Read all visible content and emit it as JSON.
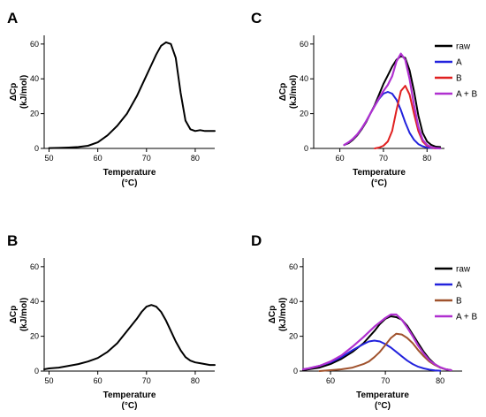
{
  "chart_data": [
    {
      "panel": "A",
      "type": "line",
      "xlabel": [
        "Temperature",
        "(°C)"
      ],
      "ylabel": [
        "ΔCp",
        "(kJ/mol)"
      ],
      "xlim": [
        49,
        84
      ],
      "ylim": [
        0,
        65
      ],
      "xticks": [
        50,
        60,
        70,
        80
      ],
      "yticks": [
        0,
        20,
        40,
        60
      ],
      "legend": null,
      "series": [
        {
          "color": "#000000",
          "x": [
            50,
            52,
            54,
            56,
            58,
            60,
            62,
            64,
            66,
            68,
            70,
            71,
            72,
            73,
            74,
            75,
            76,
            77,
            78,
            79,
            80,
            81,
            82,
            83,
            84
          ],
          "y": [
            0.2,
            0.3,
            0.5,
            0.8,
            1.5,
            3.5,
            7.5,
            13,
            20,
            30,
            42,
            48,
            54,
            59,
            61,
            60,
            52,
            32,
            16,
            11,
            10,
            10.5,
            10,
            10,
            10
          ]
        }
      ]
    },
    {
      "panel": "C",
      "type": "line",
      "xlabel": [
        "Temperature",
        "(°C)"
      ],
      "ylabel": [
        "ΔCp",
        "(kJ/mol)"
      ],
      "xlim": [
        54,
        84
      ],
      "ylim": [
        0,
        65
      ],
      "xticks": [
        60,
        70,
        80
      ],
      "yticks": [
        0,
        20,
        40,
        60
      ],
      "legend": {
        "position": "top-right",
        "entries": [
          {
            "label": "raw",
            "color": "#000000"
          },
          {
            "label": "A",
            "color": "#2222dd"
          },
          {
            "label": "B",
            "color": "#e02020"
          },
          {
            "label": "A + B",
            "color": "#b030d0"
          }
        ]
      },
      "series": [
        {
          "label": "raw",
          "color": "#000000",
          "x": [
            61,
            62,
            63,
            64,
            65,
            66,
            67,
            68,
            69,
            70,
            71,
            72,
            73,
            74,
            75,
            76,
            77,
            78,
            79,
            80,
            81,
            82,
            83
          ],
          "y": [
            2,
            3,
            5,
            7.5,
            11,
            15,
            20,
            25,
            31,
            37,
            42,
            47,
            51,
            53,
            52,
            45,
            33,
            19,
            9,
            4,
            2,
            1,
            0.8
          ]
        },
        {
          "label": "A",
          "color": "#2222dd",
          "x": [
            61,
            62,
            63,
            64,
            65,
            66,
            67,
            68,
            69,
            70,
            71,
            72,
            73,
            74,
            75,
            76,
            77,
            78,
            79,
            80,
            81,
            82,
            83
          ],
          "y": [
            2,
            3.5,
            5.5,
            8,
            11.5,
            15.5,
            20,
            24.5,
            28.5,
            31.5,
            32.5,
            31.5,
            28,
            22,
            15,
            9,
            5,
            2.5,
            1.2,
            0.5,
            0.2,
            0.1,
            0
          ]
        },
        {
          "label": "B",
          "color": "#e02020",
          "x": [
            68,
            69,
            70,
            71,
            72,
            73,
            74,
            75,
            76,
            77,
            78,
            79,
            80,
            81,
            82
          ],
          "y": [
            0,
            0.5,
            1.5,
            4,
            10,
            22,
            33,
            36,
            31,
            20,
            10,
            4,
            1.5,
            0.5,
            0
          ]
        },
        {
          "label": "A + B",
          "color": "#b030d0",
          "x": [
            61,
            62,
            63,
            64,
            65,
            66,
            67,
            68,
            69,
            70,
            71,
            72,
            73,
            74,
            75,
            76,
            77,
            78,
            79,
            80,
            81,
            82,
            83
          ],
          "y": [
            2,
            3.5,
            5.5,
            8,
            11.5,
            15.5,
            20,
            24.5,
            29,
            33,
            36.5,
            41.5,
            50,
            54.5,
            51,
            40,
            25,
            12.5,
            5,
            2,
            0.7,
            0.2,
            0
          ]
        }
      ]
    },
    {
      "panel": "B",
      "type": "line",
      "xlabel": [
        "Temperature",
        "(°C)"
      ],
      "ylabel": [
        "ΔCp",
        "(kJ/mol)"
      ],
      "xlim": [
        49,
        84
      ],
      "ylim": [
        0,
        65
      ],
      "xticks": [
        50,
        60,
        70,
        80
      ],
      "yticks": [
        0,
        20,
        40,
        60
      ],
      "legend": null,
      "series": [
        {
          "color": "#000000",
          "x": [
            49,
            50,
            52,
            54,
            56,
            58,
            60,
            62,
            64,
            66,
            68,
            69,
            70,
            71,
            72,
            73,
            74,
            75,
            76,
            77,
            78,
            79,
            80,
            81,
            82,
            83,
            84
          ],
          "y": [
            1,
            1.5,
            2,
            3,
            4,
            5.5,
            7.5,
            11,
            16,
            23,
            30,
            34,
            37,
            38,
            37,
            34,
            29,
            23,
            17,
            12,
            8,
            6,
            5,
            4.5,
            4,
            3.5,
            3.5
          ]
        }
      ]
    },
    {
      "panel": "D",
      "type": "line",
      "xlabel": [
        "Temperature",
        "(°C)"
      ],
      "ylabel": [
        "ΔCp",
        "(kJ/mol)"
      ],
      "xlim": [
        55,
        84
      ],
      "ylim": [
        0,
        65
      ],
      "xticks": [
        60,
        70,
        80
      ],
      "yticks": [
        0,
        20,
        40,
        60
      ],
      "legend": {
        "position": "top-right",
        "entries": [
          {
            "label": "raw",
            "color": "#000000"
          },
          {
            "label": "A",
            "color": "#2222dd"
          },
          {
            "label": "B",
            "color": "#a0522d"
          },
          {
            "label": "A + B",
            "color": "#b030d0"
          }
        ]
      },
      "series": [
        {
          "label": "raw",
          "color": "#000000",
          "x": [
            55,
            56,
            58,
            60,
            62,
            64,
            66,
            67,
            68,
            69,
            70,
            71,
            72,
            73,
            74,
            75,
            76,
            77,
            78,
            79,
            80,
            81,
            82
          ],
          "y": [
            0.5,
            1,
            2,
            4,
            7,
            11,
            16,
            19.5,
            23,
            27,
            30,
            31.5,
            31,
            29.5,
            26,
            21,
            16,
            11,
            7,
            4,
            2,
            1,
            0.5
          ]
        },
        {
          "label": "A",
          "color": "#2222dd",
          "x": [
            55,
            56,
            58,
            60,
            62,
            64,
            66,
            67,
            68,
            69,
            70,
            71,
            72,
            73,
            74,
            75,
            76,
            77,
            78,
            79,
            80
          ],
          "y": [
            1,
            1.5,
            3,
            5,
            8,
            12,
            15.5,
            17,
            17.5,
            17,
            15.5,
            13.5,
            11,
            8.5,
            6,
            4,
            2.5,
            1.5,
            0.8,
            0.4,
            0.2
          ]
        },
        {
          "label": "B",
          "color": "#a0522d",
          "x": [
            58,
            60,
            62,
            64,
            66,
            67,
            68,
            69,
            70,
            71,
            72,
            73,
            74,
            75,
            76,
            77,
            78,
            79,
            80,
            81,
            82
          ],
          "y": [
            0,
            0.5,
            1,
            2,
            4,
            5.5,
            8,
            11,
            15,
            19,
            21.5,
            21,
            19,
            16,
            12,
            8.5,
            5.5,
            3.5,
            2,
            1,
            0.5
          ]
        },
        {
          "label": "A + B",
          "color": "#b030d0",
          "x": [
            55,
            56,
            58,
            60,
            62,
            64,
            66,
            67,
            68,
            69,
            70,
            71,
            72,
            73,
            74,
            75,
            76,
            77,
            78,
            79,
            80,
            81,
            82
          ],
          "y": [
            1,
            1.5,
            3,
            5.5,
            9,
            14,
            19.5,
            22.5,
            25.5,
            28,
            30.5,
            32.5,
            32.5,
            29.5,
            25,
            20,
            14.5,
            10,
            6.3,
            3.9,
            2.2,
            1,
            0.5
          ]
        }
      ]
    }
  ]
}
